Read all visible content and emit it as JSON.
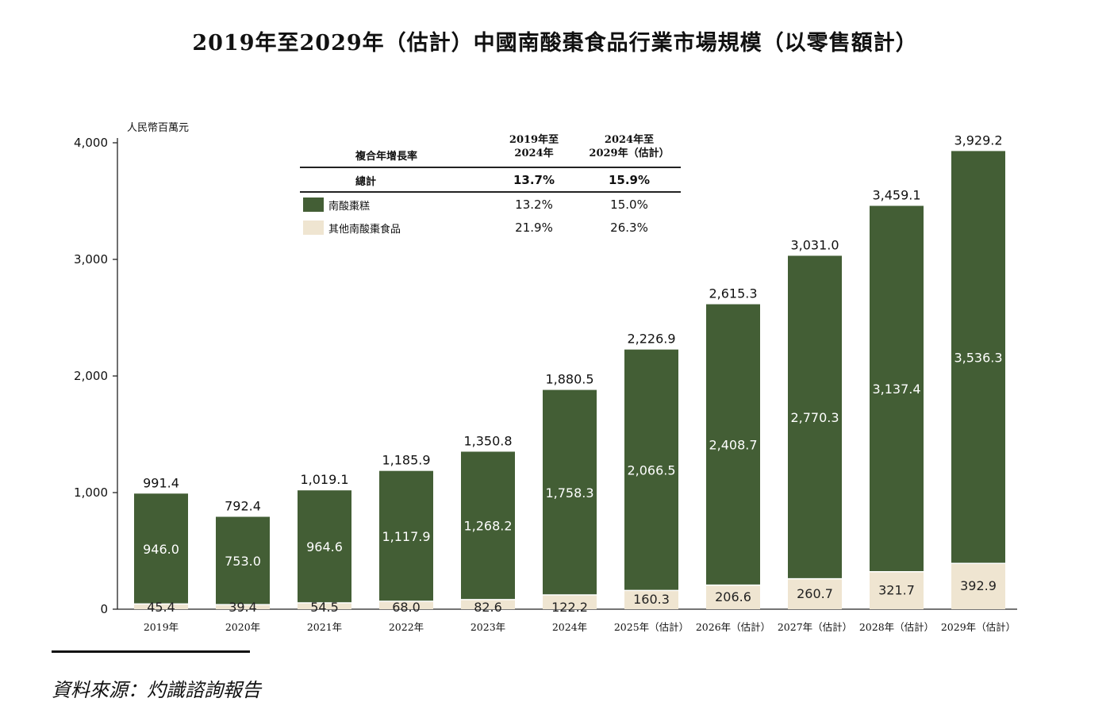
{
  "title": "2019年至2029年（估計）中國南酸棗食品行業市場規模（以零售額計）",
  "unit_label": "人民幣百萬元",
  "source": "資料來源：灼識諮詢報告",
  "colors": {
    "main": "#435e35",
    "other": "#efe5d1",
    "axis": "#222222"
  },
  "cagr_table": {
    "header_label": "複合年增長率",
    "col1_header": [
      "2019年至",
      "2024年"
    ],
    "col2_header": [
      "2024年至",
      "2029年（估計）"
    ],
    "rows": [
      {
        "label": "總計",
        "v1": "13.7%",
        "v2": "15.9%"
      },
      {
        "label": "南酸棗糕",
        "v1": "13.2%",
        "v2": "15.0%"
      },
      {
        "label": "其他南酸棗食品",
        "v1": "21.9%",
        "v2": "26.3%"
      }
    ]
  },
  "chart_data": {
    "type": "bar",
    "stacked": true,
    "categories": [
      "2019年",
      "2020年",
      "2021年",
      "2022年",
      "2023年",
      "2024年",
      "2025年（估計）",
      "2026年（估計）",
      "2027年（估計）",
      "2028年（估計）",
      "2029年（估計）"
    ],
    "series": [
      {
        "name": "其他南酸棗食品",
        "values": [
          45.4,
          39.4,
          54.5,
          68.0,
          82.6,
          122.2,
          160.3,
          206.6,
          260.7,
          321.7,
          392.9
        ],
        "labels": [
          "45.4",
          "39.4",
          "54.5",
          "68.0",
          "82.6",
          "122.2",
          "160.3",
          "206.6",
          "260.7",
          "321.7",
          "392.9"
        ]
      },
      {
        "name": "南酸棗糕",
        "values": [
          946.0,
          753.0,
          964.6,
          1117.9,
          1268.2,
          1758.3,
          2066.5,
          2408.7,
          2770.3,
          3137.4,
          3536.3
        ],
        "labels": [
          "946.0",
          "753.0",
          "964.6",
          "1,117.9",
          "1,268.2",
          "1,758.3",
          "2,066.5",
          "2,408.7",
          "2,770.3",
          "3,137.4",
          "3,536.3"
        ]
      }
    ],
    "totals": [
      991.4,
      792.4,
      1019.1,
      1185.9,
      1350.8,
      1880.5,
      2226.9,
      2615.3,
      3031.0,
      3459.1,
      3929.2
    ],
    "total_labels": [
      "991.4",
      "792.4",
      "1,019.1",
      "1,185.9",
      "1,350.8",
      "1,880.5",
      "2,226.9",
      "2,615.3",
      "3,031.0",
      "3,459.1",
      "3,929.2"
    ],
    "ylim": [
      0,
      4000
    ],
    "yticks": [
      0,
      1000,
      2000,
      3000,
      4000
    ],
    "ytick_labels": [
      "0",
      "1,000",
      "2,000",
      "3,000",
      "4,000"
    ]
  }
}
